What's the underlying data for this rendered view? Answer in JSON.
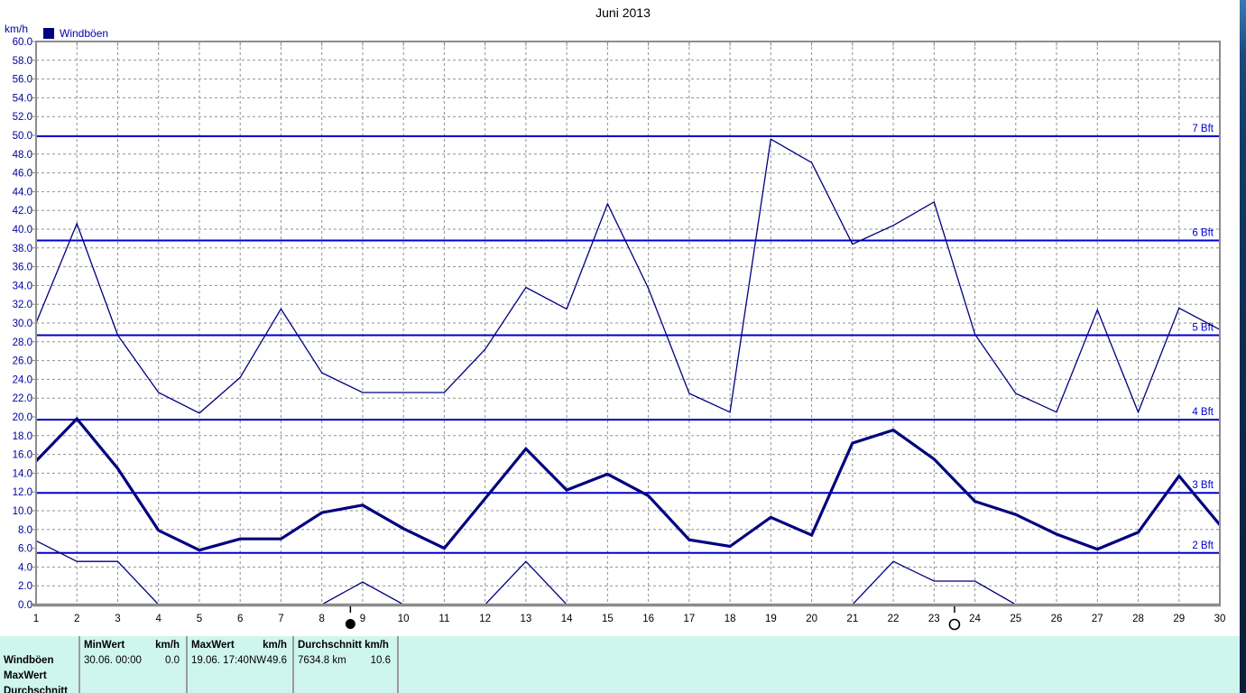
{
  "title": "Juni 2013",
  "y_axis_unit": "km/h",
  "legend": {
    "label": "Windböen",
    "swatch_color": "#000080"
  },
  "colors": {
    "series": "#000080",
    "beaufort_line": "#0000cc",
    "grid": "#909090",
    "axis": "#8c8c8c",
    "y_label": "#0000a0",
    "x_label": "#000000",
    "table_background": "#cff6ee"
  },
  "chart_data": {
    "type": "line",
    "title": "Juni 2013",
    "xlabel": "",
    "ylabel": "km/h",
    "x": [
      1,
      2,
      3,
      4,
      5,
      6,
      7,
      8,
      9,
      10,
      11,
      12,
      13,
      14,
      15,
      16,
      17,
      18,
      19,
      20,
      21,
      22,
      23,
      24,
      25,
      26,
      27,
      28,
      29,
      30
    ],
    "series": [
      {
        "name": "windboeen-max",
        "style": "thin",
        "values": [
          30.0,
          40.6,
          28.7,
          22.6,
          20.4,
          24.2,
          31.5,
          24.7,
          22.6,
          22.6,
          22.6,
          27.2,
          33.8,
          31.5,
          42.7,
          33.7,
          22.5,
          20.5,
          49.6,
          47.1,
          38.4,
          40.4,
          42.9,
          28.8,
          22.5,
          20.5,
          31.4,
          20.5,
          31.6,
          29.3
        ]
      },
      {
        "name": "windboeen-mean",
        "style": "thick",
        "values": [
          15.3,
          19.8,
          14.5,
          7.9,
          5.8,
          7.0,
          7.0,
          9.8,
          10.6,
          8.1,
          6.0,
          11.3,
          16.6,
          12.2,
          13.9,
          11.6,
          6.9,
          6.2,
          9.3,
          7.4,
          17.2,
          18.6,
          15.5,
          11.0,
          9.6,
          7.5,
          5.9,
          7.7,
          13.7,
          8.5
        ]
      },
      {
        "name": "windboeen-min",
        "style": "thin",
        "values": [
          6.8,
          4.6,
          4.6,
          0.0,
          0.0,
          0.0,
          0.0,
          0.0,
          2.4,
          0.0,
          0.0,
          0.0,
          4.6,
          0.0,
          0.0,
          0.0,
          0.0,
          0.0,
          0.0,
          0.0,
          0.0,
          4.6,
          2.5,
          2.5,
          0.0,
          0.0,
          0.0,
          0.0,
          0.0,
          0.0
        ]
      }
    ],
    "ylim": [
      0,
      60
    ],
    "ytick_step": 2,
    "ytick_format_decimals": 1,
    "grid": "dashed",
    "legend_position": "top-left",
    "beaufort_lines": [
      {
        "label": "2 Bft",
        "value": 5.5
      },
      {
        "label": "3 Bft",
        "value": 11.9
      },
      {
        "label": "4 Bft",
        "value": 19.7
      },
      {
        "label": "5 Bft",
        "value": 28.7
      },
      {
        "label": "6 Bft",
        "value": 38.8
      },
      {
        "label": "7 Bft",
        "value": 49.9
      }
    ],
    "skip_grid_values": [
      6,
      12,
      20,
      50
    ],
    "moon_markers": [
      {
        "x": 8.7,
        "phase": "new-moon",
        "glyph": "●"
      },
      {
        "x": 23.5,
        "phase": "full-moon",
        "glyph": "○"
      }
    ]
  },
  "summary_table": {
    "row_labels": [
      "Windböen",
      "MaxWert",
      "Durchschnitt"
    ],
    "columns": [
      {
        "header": "MinWert",
        "unit": "km/h",
        "value": "30.06.  00:00",
        "number": "0.0"
      },
      {
        "header": "MaxWert",
        "unit": "km/h",
        "value": "19.06.  17:40NW",
        "number": "49.6"
      },
      {
        "header": "Durchschnitt km/h",
        "unit": "",
        "value": "7634.8 km",
        "number": "10.6"
      }
    ]
  }
}
